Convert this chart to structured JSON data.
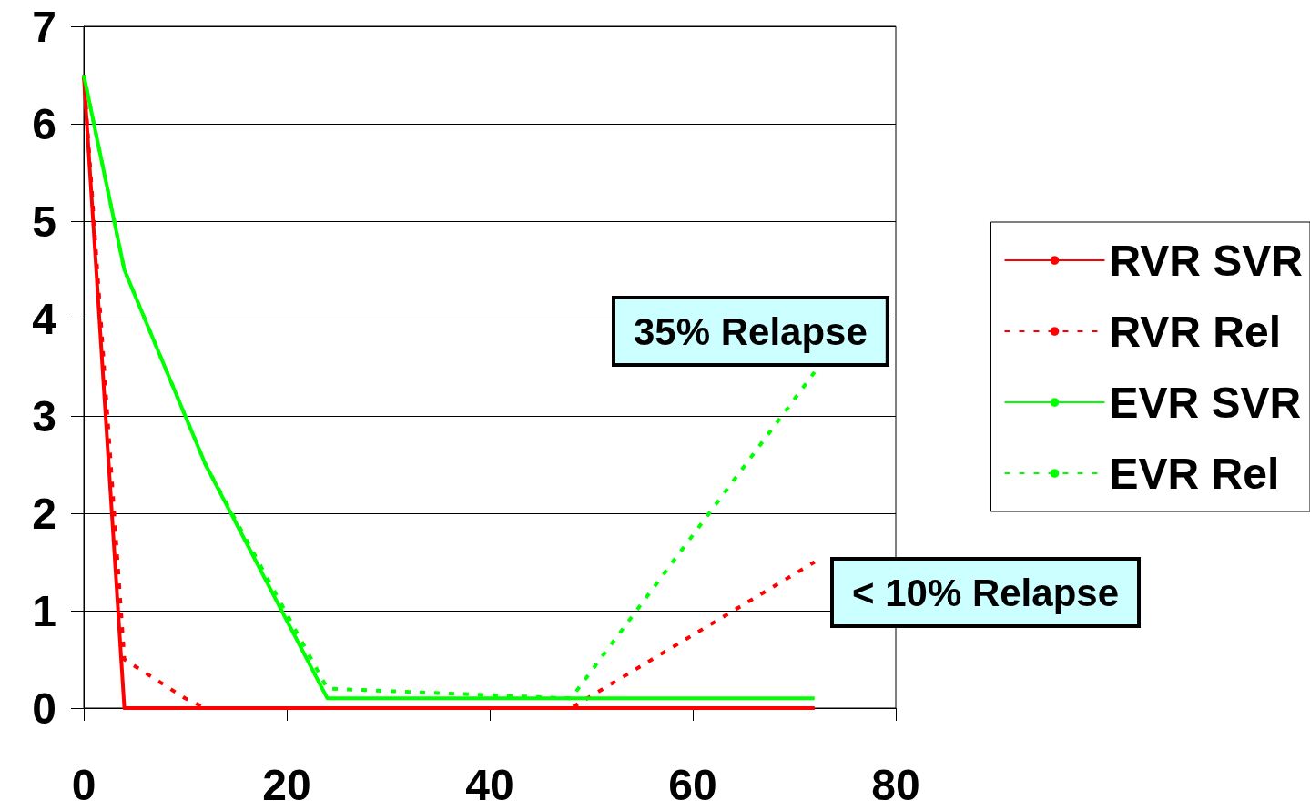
{
  "chart_data": {
    "type": "line",
    "xlim": [
      0,
      80
    ],
    "xticks": [
      0,
      20,
      40,
      60,
      80
    ],
    "ylim": [
      0,
      7
    ],
    "yticks": [
      0,
      1,
      2,
      3,
      4,
      5,
      6,
      7
    ],
    "grid": "y",
    "legend": "right",
    "series": [
      {
        "name": "RVR SVR",
        "color": "#ff0000",
        "line_style": "solid",
        "x": [
          0,
          4,
          72
        ],
        "values": [
          6.5,
          0,
          0
        ]
      },
      {
        "name": "RVR Rel",
        "color": "#ff0000",
        "line_style": "dotted",
        "x": [
          0,
          4,
          10,
          12,
          48,
          72
        ],
        "values": [
          6.5,
          0.5,
          0.1,
          0,
          0,
          1.5
        ]
      },
      {
        "name": "EVR SVR",
        "color": "#00ff00",
        "line_style": "solid",
        "x": [
          0,
          4,
          12,
          24,
          72
        ],
        "values": [
          6.5,
          4.5,
          2.5,
          0.1,
          0.1
        ]
      },
      {
        "name": "EVR Rel",
        "color": "#00ff00",
        "line_style": "dotted",
        "x": [
          0,
          4,
          12,
          24,
          48,
          72
        ],
        "values": [
          6.5,
          4.5,
          2.5,
          0.2,
          0.1,
          3.45
        ]
      }
    ],
    "annotations": [
      "35% Relapse",
      "< 10% Relapse"
    ]
  }
}
